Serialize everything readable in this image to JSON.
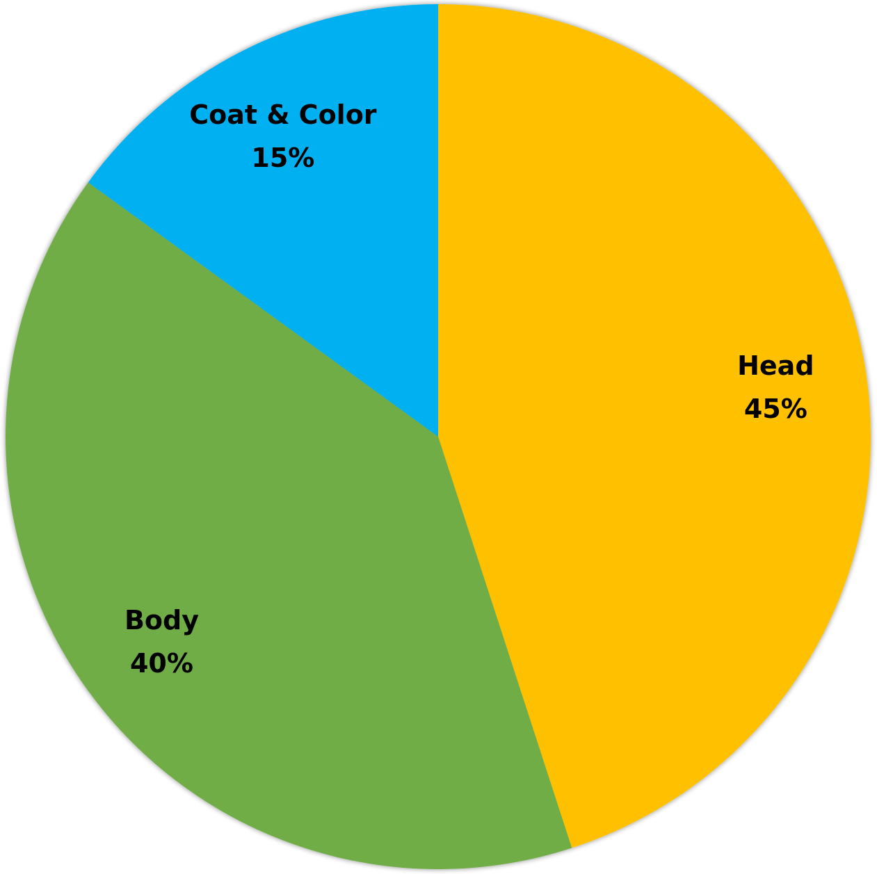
{
  "chart_data": {
    "type": "pie",
    "start_angle_deg": 0,
    "direction": "clockwise",
    "slices": [
      {
        "name": "Head",
        "value": 45,
        "value_label": "45%",
        "color": "#FFC000"
      },
      {
        "name": "Body",
        "value": 40,
        "value_label": "40%",
        "color": "#70AD47"
      },
      {
        "name": "Coat & Color",
        "value": 15,
        "value_label": "15%",
        "color": "#00B0F0"
      }
    ],
    "legend": "none"
  }
}
